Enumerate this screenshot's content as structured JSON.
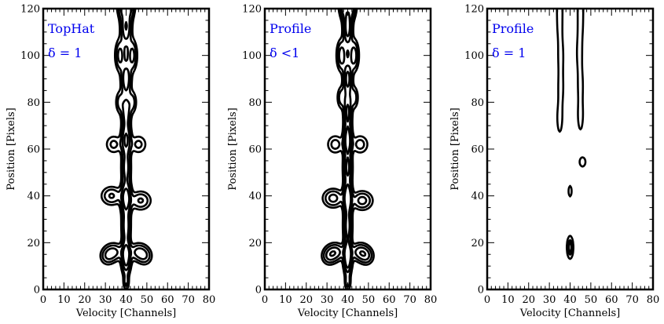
{
  "chart_data": [
    {
      "type": "contour",
      "xlabel": "Velocity [Channels]",
      "ylabel": "Position [Pixels]",
      "xlim": [
        0,
        80
      ],
      "ylim": [
        0,
        120
      ],
      "xticks": [
        "0",
        "10",
        "20",
        "30",
        "40",
        "50",
        "60",
        "70",
        "80"
      ],
      "yticks": [
        "0",
        "20",
        "40",
        "60",
        "80",
        "100",
        "120"
      ],
      "annotations": [
        "TopHat",
        "δ = 1"
      ],
      "annotation_color": "#0000ee",
      "contour_color": "#000000",
      "clumps": [
        {
          "x": 40,
          "y": 3,
          "sx": 0.9,
          "sy": 2.2,
          "a": 0.9
        },
        {
          "x": 40,
          "y": 14,
          "sx": 1.4,
          "sy": 4.5,
          "a": 2.8
        },
        {
          "x": 34,
          "y": 16,
          "sx": 2.8,
          "sy": 2.3,
          "a": 1.5
        },
        {
          "x": 46,
          "y": 16,
          "sx": 2.8,
          "sy": 2.3,
          "a": 1.5
        },
        {
          "x": 31,
          "y": 14,
          "sx": 2.2,
          "sy": 2.2,
          "a": 1.0
        },
        {
          "x": 49,
          "y": 14,
          "sx": 2.2,
          "sy": 2.2,
          "a": 1.0
        },
        {
          "x": 40,
          "y": 27,
          "sx": 1.3,
          "sy": 4.5,
          "a": 1.8
        },
        {
          "x": 40,
          "y": 39,
          "sx": 1.6,
          "sy": 4.5,
          "a": 2.6
        },
        {
          "x": 33,
          "y": 40,
          "sx": 3.0,
          "sy": 2.4,
          "a": 1.4
        },
        {
          "x": 47,
          "y": 38,
          "sx": 3.0,
          "sy": 2.4,
          "a": 1.4
        },
        {
          "x": 40,
          "y": 52,
          "sx": 1.4,
          "sy": 4.5,
          "a": 1.6
        },
        {
          "x": 40,
          "y": 64,
          "sx": 1.5,
          "sy": 4.5,
          "a": 2.1
        },
        {
          "x": 34,
          "y": 62,
          "sx": 2.5,
          "sy": 2.5,
          "a": 0.9
        },
        {
          "x": 46,
          "y": 62,
          "sx": 2.5,
          "sy": 2.5,
          "a": 0.9
        },
        {
          "x": 40,
          "y": 76,
          "sx": 1.4,
          "sy": 4.5,
          "a": 1.7
        },
        {
          "x": 37,
          "y": 80,
          "sx": 1.3,
          "sy": 3.0,
          "a": 1.0
        },
        {
          "x": 43,
          "y": 80,
          "sx": 1.3,
          "sy": 3.0,
          "a": 1.0
        },
        {
          "x": 40,
          "y": 90,
          "sx": 1.5,
          "sy": 4.5,
          "a": 1.9
        },
        {
          "x": 37,
          "y": 100,
          "sx": 1.4,
          "sy": 4.0,
          "a": 1.6
        },
        {
          "x": 43,
          "y": 100,
          "sx": 1.4,
          "sy": 4.0,
          "a": 1.6
        },
        {
          "x": 40,
          "y": 112,
          "sx": 1.6,
          "sy": 5.0,
          "a": 2.0
        },
        {
          "x": 38,
          "y": 122,
          "sx": 1.5,
          "sy": 4.0,
          "a": 1.5
        },
        {
          "x": 42,
          "y": 122,
          "sx": 1.5,
          "sy": 4.0,
          "a": 1.5
        }
      ],
      "levels": [
        0.38,
        0.75,
        1.3,
        2.0
      ]
    },
    {
      "type": "contour",
      "xlabel": "Velocity [Channels]",
      "ylabel": "Position [Pixels]",
      "xlim": [
        0,
        80
      ],
      "ylim": [
        0,
        120
      ],
      "xticks": [
        "0",
        "10",
        "20",
        "30",
        "40",
        "50",
        "60",
        "70",
        "80"
      ],
      "yticks": [
        "0",
        "20",
        "40",
        "60",
        "80",
        "100",
        "120"
      ],
      "annotations": [
        "Profile",
        "δ <1"
      ],
      "annotation_color": "#0000ee",
      "contour_color": "#000000",
      "clumps": [
        {
          "x": 40,
          "y": 3,
          "sx": 0.9,
          "sy": 2.2,
          "a": 1.0
        },
        {
          "x": 40,
          "y": 14,
          "sx": 1.2,
          "sy": 4.5,
          "a": 3.4
        },
        {
          "x": 34,
          "y": 16,
          "sx": 2.8,
          "sy": 2.3,
          "a": 1.7
        },
        {
          "x": 46,
          "y": 16,
          "sx": 2.8,
          "sy": 2.3,
          "a": 1.7
        },
        {
          "x": 31,
          "y": 14,
          "sx": 2.2,
          "sy": 2.2,
          "a": 1.1
        },
        {
          "x": 49,
          "y": 14,
          "sx": 2.2,
          "sy": 2.2,
          "a": 1.1
        },
        {
          "x": 40,
          "y": 27,
          "sx": 1.2,
          "sy": 4.5,
          "a": 2.5
        },
        {
          "x": 40,
          "y": 39,
          "sx": 1.3,
          "sy": 4.5,
          "a": 3.2
        },
        {
          "x": 33,
          "y": 39,
          "sx": 3.0,
          "sy": 2.4,
          "a": 1.6
        },
        {
          "x": 47,
          "y": 38,
          "sx": 3.0,
          "sy": 2.4,
          "a": 1.6
        },
        {
          "x": 40,
          "y": 52,
          "sx": 1.3,
          "sy": 4.5,
          "a": 2.2
        },
        {
          "x": 40,
          "y": 64,
          "sx": 1.3,
          "sy": 4.5,
          "a": 2.6
        },
        {
          "x": 34,
          "y": 62,
          "sx": 2.5,
          "sy": 2.5,
          "a": 1.0
        },
        {
          "x": 46,
          "y": 62,
          "sx": 2.5,
          "sy": 2.5,
          "a": 1.0
        },
        {
          "x": 40,
          "y": 76,
          "sx": 1.2,
          "sy": 4.5,
          "a": 2.2
        },
        {
          "x": 37,
          "y": 82,
          "sx": 1.3,
          "sy": 3.0,
          "a": 1.1
        },
        {
          "x": 43,
          "y": 82,
          "sx": 1.3,
          "sy": 3.0,
          "a": 1.1
        },
        {
          "x": 40,
          "y": 90,
          "sx": 1.3,
          "sy": 4.5,
          "a": 2.4
        },
        {
          "x": 37,
          "y": 100,
          "sx": 1.4,
          "sy": 4.0,
          "a": 1.8
        },
        {
          "x": 43,
          "y": 100,
          "sx": 1.4,
          "sy": 4.0,
          "a": 1.8
        },
        {
          "x": 40,
          "y": 112,
          "sx": 1.3,
          "sy": 5.0,
          "a": 2.6
        },
        {
          "x": 38,
          "y": 122,
          "sx": 1.4,
          "sy": 4.0,
          "a": 1.8
        },
        {
          "x": 42,
          "y": 122,
          "sx": 1.4,
          "sy": 4.0,
          "a": 1.8
        }
      ],
      "levels": [
        0.38,
        0.75,
        1.3,
        2.0
      ]
    },
    {
      "type": "contour",
      "xlabel": "Velocity [Channels]",
      "ylabel": "Position [Pixels]",
      "xlim": [
        0,
        80
      ],
      "ylim": [
        0,
        120
      ],
      "xticks": [
        "0",
        "10",
        "20",
        "30",
        "40",
        "50",
        "60",
        "70",
        "80"
      ],
      "yticks": [
        "0",
        "20",
        "40",
        "60",
        "80",
        "100",
        "120"
      ],
      "annotations": [
        "Profile",
        "δ = 1"
      ],
      "annotation_color": "#0000ee",
      "contour_color": "#000000",
      "clumps": [
        {
          "x": 40,
          "y": 18,
          "sx": 0.8,
          "sy": 2.5,
          "a": 2.6
        },
        {
          "x": 40,
          "y": 42,
          "sx": 0.5,
          "sy": 1.6,
          "a": 1.0
        },
        {
          "x": 46,
          "y": 54.5,
          "sx": 1.0,
          "sy": 1.4,
          "a": 1.0
        },
        {
          "x": 35,
          "y": 73,
          "sx": 1.0,
          "sy": 5.0,
          "a": 0.7
        },
        {
          "x": 35.5,
          "y": 86,
          "sx": 1.0,
          "sy": 6.0,
          "a": 0.7
        },
        {
          "x": 35.5,
          "y": 100,
          "sx": 1.0,
          "sy": 6.0,
          "a": 0.7
        },
        {
          "x": 35,
          "y": 114,
          "sx": 1.0,
          "sy": 6.0,
          "a": 0.7
        },
        {
          "x": 35,
          "y": 124,
          "sx": 1.0,
          "sy": 5.0,
          "a": 0.7
        },
        {
          "x": 45,
          "y": 74,
          "sx": 1.0,
          "sy": 5.0,
          "a": 0.7
        },
        {
          "x": 45,
          "y": 87,
          "sx": 1.0,
          "sy": 6.0,
          "a": 0.7
        },
        {
          "x": 44.5,
          "y": 101,
          "sx": 1.0,
          "sy": 6.0,
          "a": 0.7
        },
        {
          "x": 45,
          "y": 114,
          "sx": 1.0,
          "sy": 6.0,
          "a": 0.7
        },
        {
          "x": 45,
          "y": 124,
          "sx": 1.0,
          "sy": 5.0,
          "a": 0.7
        }
      ],
      "levels": [
        0.38,
        1.2,
        1.9
      ]
    }
  ]
}
